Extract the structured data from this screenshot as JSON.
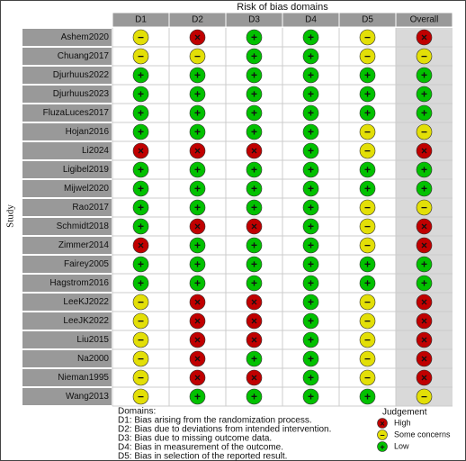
{
  "header": {
    "title": "Risk of bias domains",
    "y_label": "Study"
  },
  "columns": [
    "D1",
    "D2",
    "D3",
    "D4",
    "D5",
    "Overall"
  ],
  "rows": [
    {
      "study": "Ashem2020",
      "judgements": [
        "−",
        "×",
        "+",
        "+",
        "−",
        "×"
      ]
    },
    {
      "study": "Chuang2017",
      "judgements": [
        "−",
        "−",
        "+",
        "+",
        "−",
        "−"
      ]
    },
    {
      "study": "Djurhuus2022",
      "judgements": [
        "+",
        "+",
        "+",
        "+",
        "+",
        "+"
      ]
    },
    {
      "study": "Djurhuus2023",
      "judgements": [
        "+",
        "+",
        "+",
        "+",
        "+",
        "+"
      ]
    },
    {
      "study": "FluzaLuces2017",
      "judgements": [
        "+",
        "+",
        "+",
        "+",
        "+",
        "+"
      ]
    },
    {
      "study": "Hojan2016",
      "judgements": [
        "+",
        "+",
        "+",
        "+",
        "−",
        "−"
      ]
    },
    {
      "study": "Li2024",
      "judgements": [
        "×",
        "×",
        "×",
        "+",
        "−",
        "×"
      ]
    },
    {
      "study": "Ligibel2019",
      "judgements": [
        "+",
        "+",
        "+",
        "+",
        "+",
        "+"
      ]
    },
    {
      "study": "Mijwel2020",
      "judgements": [
        "+",
        "+",
        "+",
        "+",
        "+",
        "+"
      ]
    },
    {
      "study": "Rao2017",
      "judgements": [
        "+",
        "+",
        "+",
        "+",
        "−",
        "−"
      ]
    },
    {
      "study": "Schmidt2018",
      "judgements": [
        "+",
        "×",
        "×",
        "+",
        "−",
        "×"
      ]
    },
    {
      "study": "Zimmer2014",
      "judgements": [
        "×",
        "+",
        "+",
        "+",
        "−",
        "×"
      ]
    },
    {
      "study": "Fairey2005",
      "judgements": [
        "+",
        "+",
        "+",
        "+",
        "+",
        "+"
      ]
    },
    {
      "study": "Hagstrom2016",
      "judgements": [
        "+",
        "+",
        "+",
        "+",
        "+",
        "+"
      ]
    },
    {
      "study": "LeeKJ2022",
      "judgements": [
        "−",
        "×",
        "×",
        "+",
        "−",
        "×"
      ]
    },
    {
      "study": "LeeJK2022",
      "judgements": [
        "−",
        "×",
        "×",
        "+",
        "−",
        "×"
      ]
    },
    {
      "study": "Liu2015",
      "judgements": [
        "−",
        "×",
        "×",
        "+",
        "−",
        "×"
      ]
    },
    {
      "study": "Na2000",
      "judgements": [
        "−",
        "×",
        "+",
        "+",
        "−",
        "×"
      ]
    },
    {
      "study": "Nieman1995",
      "judgements": [
        "−",
        "×",
        "×",
        "+",
        "−",
        "×"
      ]
    },
    {
      "study": "Wang2013",
      "judgements": [
        "−",
        "+",
        "+",
        "+",
        "+",
        "−"
      ]
    }
  ],
  "domains": {
    "title": "Domains:",
    "items": [
      "D1: Bias arising from the randomization process.",
      "D2: Bias due to deviations from intended intervention.",
      "D3: Bias due to missing outcome data.",
      "D4: Bias in measurement of the outcome.",
      "D5: Bias in selection of the reported result."
    ]
  },
  "legend": {
    "title": "Judgement",
    "items": [
      {
        "symbol": "×",
        "label": "High",
        "color": "#c00000"
      },
      {
        "symbol": "−",
        "label": "Some concerns",
        "color": "#e3df07"
      },
      {
        "symbol": "+",
        "label": "Low",
        "color": "#02c100"
      }
    ]
  }
}
